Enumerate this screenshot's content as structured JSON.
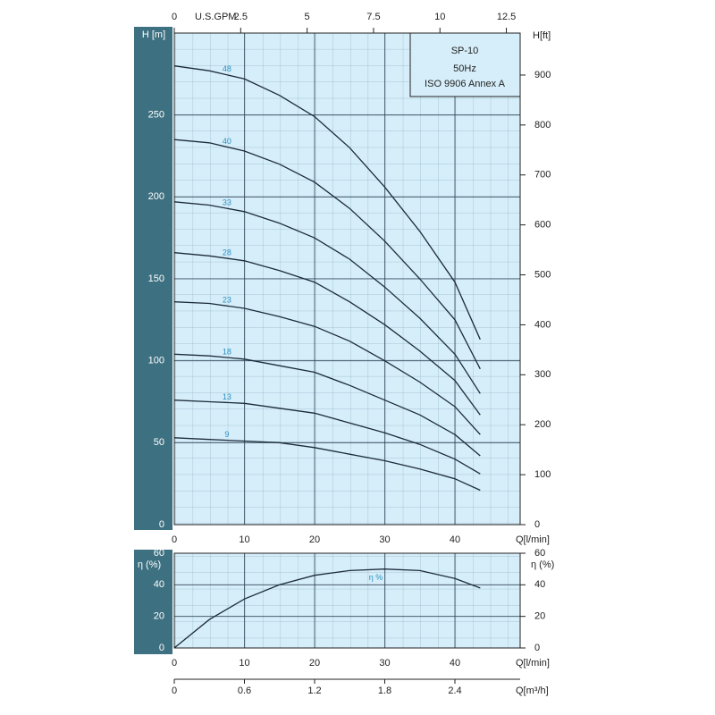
{
  "chart_data": [
    {
      "type": "line",
      "title": "SP-10",
      "subtitle": "50Hz",
      "annotation": "ISO 9906 Annex A",
      "ylabel": "H [m]",
      "y2label": "H[ft]",
      "xlabel": "Q[l/min]",
      "x2label": "U.S.GPM",
      "x": [
        0,
        5,
        10,
        15,
        20,
        25,
        30,
        35,
        40,
        43.6
      ],
      "xlim": [
        0,
        49.3
      ],
      "xticks": [
        0,
        10,
        20,
        30,
        40
      ],
      "x2lim": [
        0,
        13.02
      ],
      "x2ticks": [
        0,
        2.5,
        5,
        7.5,
        10,
        12.5
      ],
      "ylim": [
        0,
        300
      ],
      "yticks": [
        0,
        50,
        100,
        150,
        200,
        250
      ],
      "y2lim": [
        0,
        984
      ],
      "y2ticks": [
        0,
        100,
        200,
        300,
        400,
        500,
        600,
        700,
        800,
        900
      ],
      "color": "#1c2b3a",
      "label_color": "#2a8fc0",
      "series": [
        {
          "name": "48",
          "values": [
            280,
            277,
            272,
            262,
            249,
            230,
            206,
            179,
            148,
            113
          ]
        },
        {
          "name": "40",
          "values": [
            235,
            233,
            228,
            220,
            209,
            193,
            173,
            150,
            125,
            95
          ]
        },
        {
          "name": "33",
          "values": [
            197,
            195,
            191,
            184,
            175,
            162,
            145,
            126,
            104,
            80
          ]
        },
        {
          "name": "28",
          "values": [
            166,
            164,
            161,
            155,
            148,
            136,
            122,
            106,
            88,
            67
          ]
        },
        {
          "name": "23",
          "values": [
            136,
            135,
            132,
            127,
            121,
            112,
            100,
            87,
            72,
            55
          ]
        },
        {
          "name": "18",
          "values": [
            104,
            103,
            101,
            97,
            93,
            85,
            76,
            67,
            55,
            42
          ]
        },
        {
          "name": "13",
          "values": [
            76,
            75,
            74,
            71,
            68,
            62,
            56,
            49,
            40,
            31
          ]
        },
        {
          "name": "9",
          "values": [
            53,
            52,
            51,
            50,
            47,
            43,
            39,
            34,
            28,
            21
          ]
        }
      ]
    },
    {
      "type": "line",
      "ylabel": "η (%)",
      "y2label": "η (%)",
      "xlabel": "Q[l/min]",
      "x3label": "Q[m³/h]",
      "x": [
        0,
        5,
        10,
        15,
        20,
        25,
        30,
        35,
        40,
        43.6
      ],
      "xlim": [
        0,
        49.3
      ],
      "xticks": [
        0,
        10,
        20,
        30,
        40
      ],
      "x3lim": [
        0,
        2.958
      ],
      "x3ticks": [
        0,
        0.6,
        1.2,
        1.8,
        2.4
      ],
      "ylim": [
        0,
        60
      ],
      "yticks": [
        0,
        20,
        40,
        60
      ],
      "y2lim": [
        0,
        60
      ],
      "y2ticks": [
        0,
        20,
        40,
        60
      ],
      "color": "#1c2b3a",
      "label_color": "#2a8fc0",
      "series": [
        {
          "name": "η %",
          "values": [
            0,
            18,
            31,
            40,
            46,
            49,
            50,
            49,
            44,
            38
          ]
        }
      ]
    }
  ]
}
